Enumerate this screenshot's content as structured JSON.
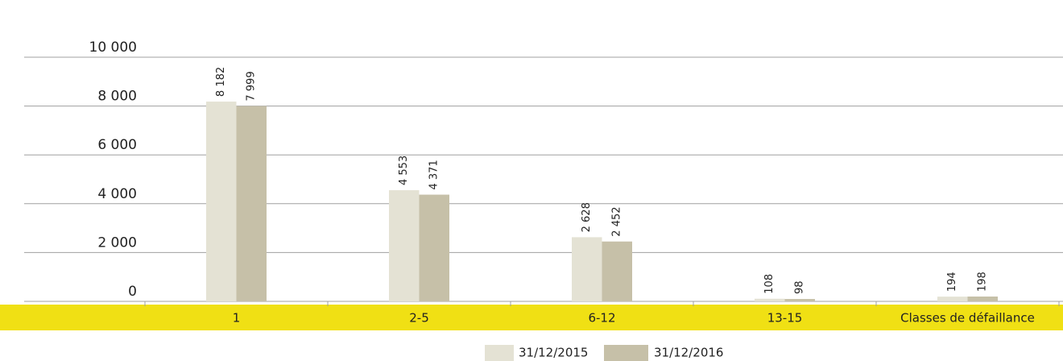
{
  "chart_data": {
    "type": "bar",
    "categories": [
      "1",
      "2-5",
      "6-12",
      "13-15",
      "Classes de défaillance"
    ],
    "series": [
      {
        "name": "31/12/2015",
        "color": "#e4e2d4",
        "values": [
          8182,
          4553,
          2628,
          108,
          194
        ],
        "value_labels": [
          "8 182",
          "4 553",
          "2 628",
          "108",
          "194"
        ]
      },
      {
        "name": "31/12/2016",
        "color": "#c6c0a8",
        "values": [
          7999,
          4371,
          2452,
          98,
          198
        ],
        "value_labels": [
          "7 999",
          "4 371",
          "2 452",
          "98",
          "198"
        ]
      }
    ],
    "ylim": [
      0,
      10000
    ],
    "yticks": [
      0,
      {
        "value": 2000,
        "label": "2 000"
      },
      {
        "value": 4000,
        "label": "4 000"
      },
      {
        "value": 6000,
        "label": "6 000"
      },
      {
        "value": 8000,
        "label": "8 000"
      },
      {
        "value": 10000,
        "label": "10 000"
      }
    ],
    "grid": true,
    "legend": "bottom"
  }
}
